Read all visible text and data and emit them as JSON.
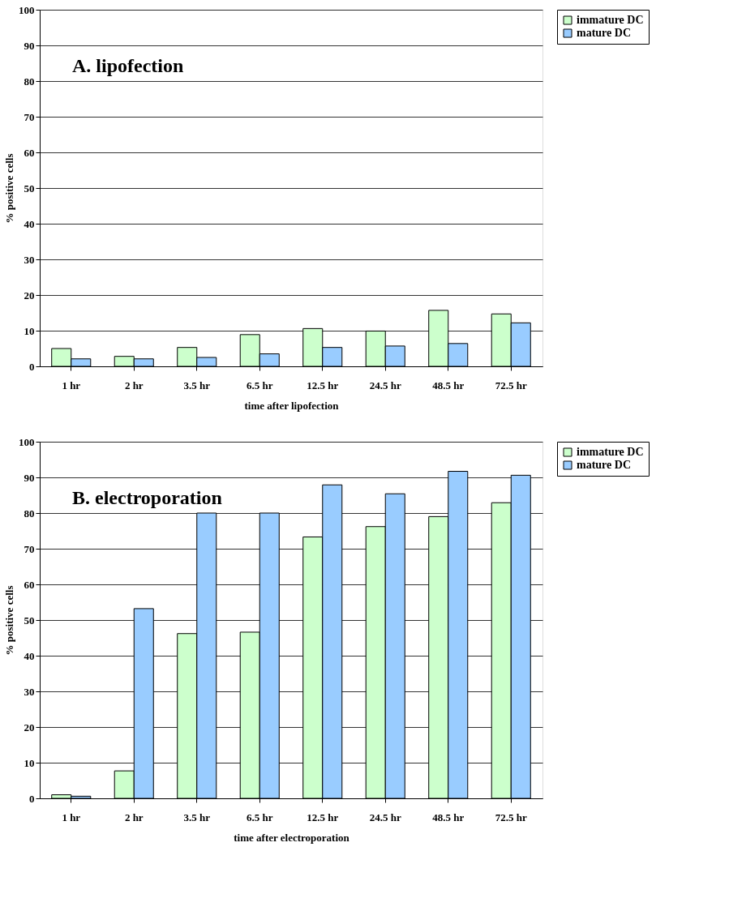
{
  "chart_data": [
    {
      "type": "bar",
      "categories": [
        "1 hr",
        "2 hr",
        "3.5 hr",
        "6.5 hr",
        "12.5 hr",
        "24.5 hr",
        "48.5 hr",
        "72.5 hr"
      ],
      "series": [
        {
          "name": "immature DC",
          "color": "#ccffcc",
          "values": [
            5.0,
            2.8,
            5.3,
            8.9,
            10.6,
            9.9,
            15.7,
            14.7
          ]
        },
        {
          "name": "mature DC",
          "color": "#99ccff",
          "values": [
            2.1,
            2.1,
            2.5,
            3.5,
            5.3,
            5.7,
            6.4,
            12.2
          ]
        }
      ],
      "xlabel": "time after lipofection",
      "ylabel": "%  positive cells",
      "annotations": [
        "A.   lipofection"
      ],
      "ylim": [
        0,
        100
      ],
      "yticks": [
        0,
        10,
        20,
        30,
        40,
        50,
        60,
        70,
        80,
        90,
        100
      ],
      "grid": "y",
      "legend": "right"
    },
    {
      "type": "bar",
      "categories": [
        "1 hr",
        "2 hr",
        "3.5 hr",
        "6.5 hr",
        "12.5 hr",
        "24.5 hr",
        "48.5 hr",
        "72.5 hr"
      ],
      "series": [
        {
          "name": "immature DC",
          "color": "#ccffcc",
          "values": [
            1.0,
            7.7,
            46.2,
            46.6,
            73.3,
            76.2,
            79.0,
            82.9
          ]
        },
        {
          "name": "mature DC",
          "color": "#99ccff",
          "values": [
            0.6,
            53.2,
            80.0,
            80.0,
            87.9,
            85.4,
            91.7,
            90.6
          ]
        }
      ],
      "xlabel": "time after electroporation",
      "ylabel": "%  positive cells",
      "annotations": [
        "B.   electroporation"
      ],
      "ylim": [
        0,
        100
      ],
      "yticks": [
        0,
        10,
        20,
        30,
        40,
        50,
        60,
        70,
        80,
        90,
        100
      ],
      "grid": "y",
      "legend": "right"
    }
  ]
}
